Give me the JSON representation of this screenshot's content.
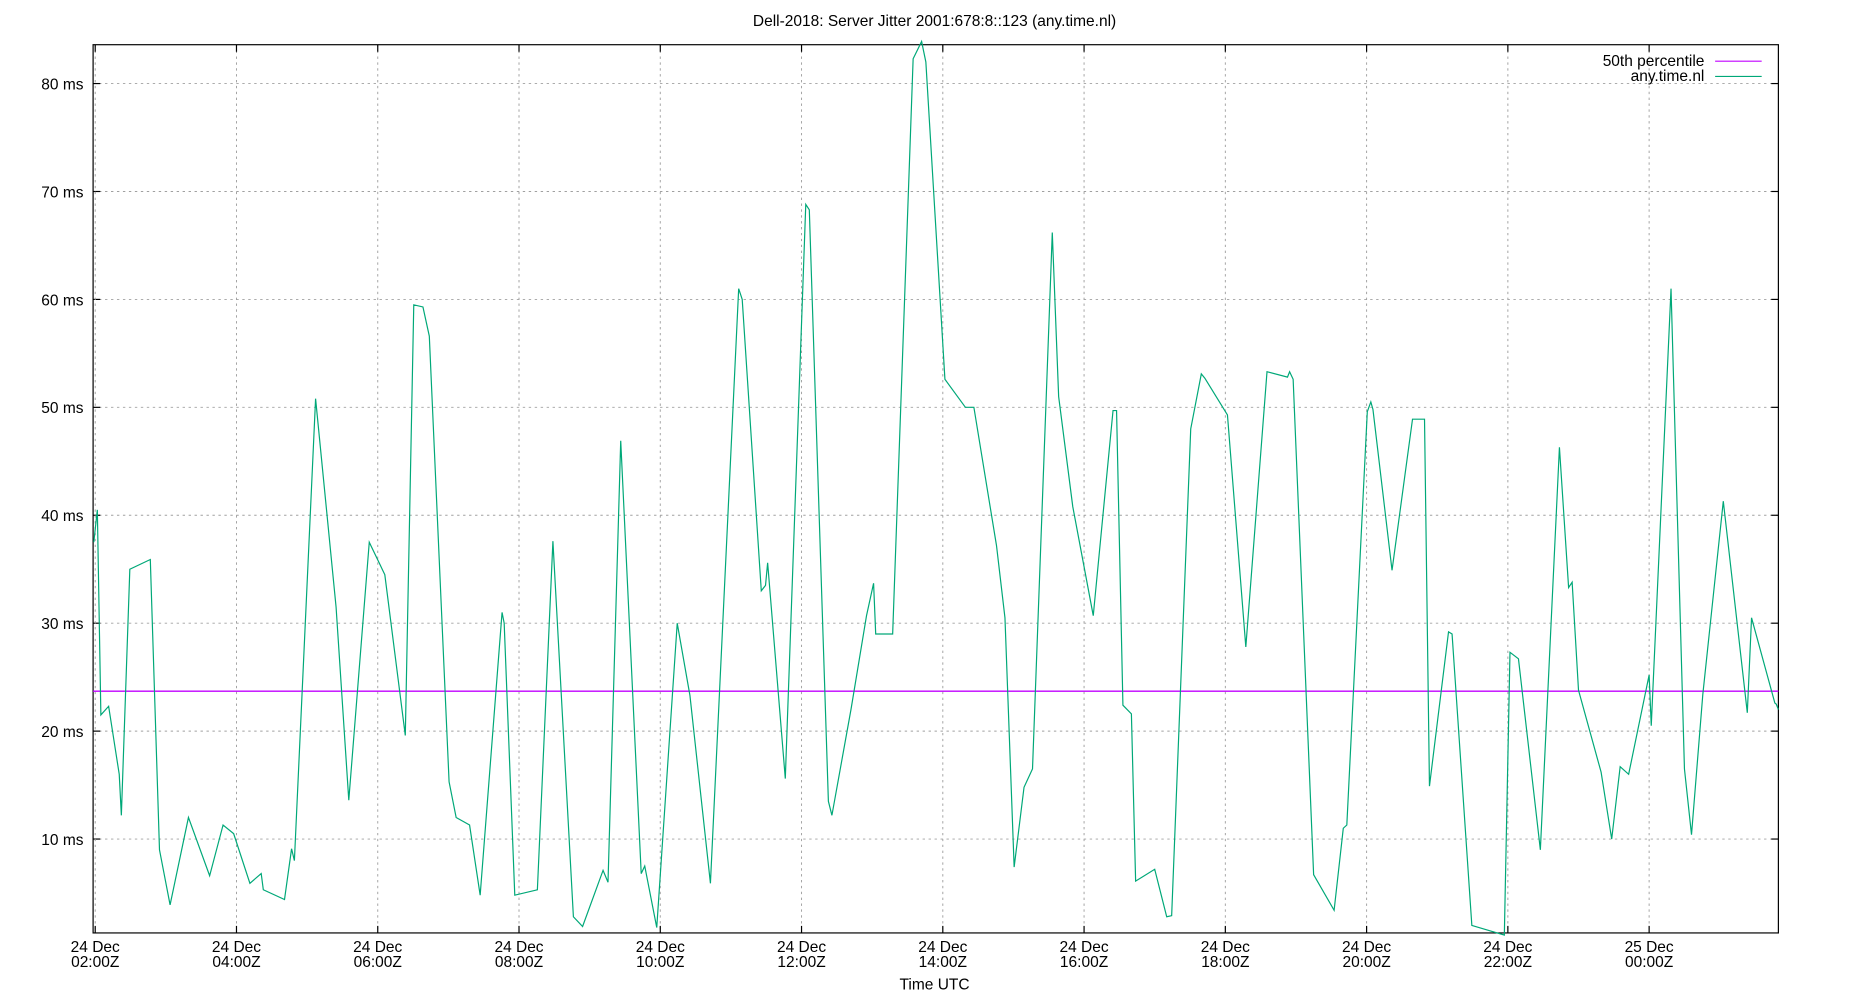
{
  "chart_data": {
    "type": "line",
    "title": "Dell-2018: Server Jitter 2001:678:8::123 (any.time.nl)",
    "xlabel": "Time UTC",
    "xlim": [
      1.97,
      25.83
    ],
    "ylim": [
      1.3,
      83.6
    ],
    "xticks": [
      {
        "value": 2,
        "label": [
          "24 Dec",
          "02:00Z"
        ]
      },
      {
        "value": 4,
        "label": [
          "24 Dec",
          "04:00Z"
        ]
      },
      {
        "value": 6,
        "label": [
          "24 Dec",
          "06:00Z"
        ]
      },
      {
        "value": 8,
        "label": [
          "24 Dec",
          "08:00Z"
        ]
      },
      {
        "value": 10,
        "label": [
          "24 Dec",
          "10:00Z"
        ]
      },
      {
        "value": 12,
        "label": [
          "24 Dec",
          "12:00Z"
        ]
      },
      {
        "value": 14,
        "label": [
          "24 Dec",
          "14:00Z"
        ]
      },
      {
        "value": 16,
        "label": [
          "24 Dec",
          "16:00Z"
        ]
      },
      {
        "value": 18,
        "label": [
          "24 Dec",
          "18:00Z"
        ]
      },
      {
        "value": 20,
        "label": [
          "24 Dec",
          "20:00Z"
        ]
      },
      {
        "value": 22,
        "label": [
          "24 Dec",
          "22:00Z"
        ]
      },
      {
        "value": 24,
        "label": [
          "25 Dec",
          "00:00Z"
        ]
      }
    ],
    "yticks": [
      {
        "value": 10,
        "label": "10 ms"
      },
      {
        "value": 20,
        "label": "20 ms"
      },
      {
        "value": 30,
        "label": "30 ms"
      },
      {
        "value": 40,
        "label": "40 ms"
      },
      {
        "value": 50,
        "label": "50 ms"
      },
      {
        "value": 60,
        "label": "60 ms"
      },
      {
        "value": 70,
        "label": "70 ms"
      },
      {
        "value": 80,
        "label": "80 ms"
      }
    ],
    "grid": true,
    "legend": "top-right",
    "reference_lines": [
      {
        "name": "50th percentile",
        "color": "#c000ff",
        "value": 23.7
      }
    ],
    "series": [
      {
        "name": "any.time.nl",
        "color": "#00a878",
        "x": [
          1.98,
          2.03,
          2.08,
          2.19,
          2.34,
          2.37,
          2.49,
          2.78,
          2.91,
          3.06,
          3.32,
          3.62,
          3.81,
          3.96,
          4.19,
          4.35,
          4.38,
          4.68,
          4.78,
          4.82,
          5.12,
          5.41,
          5.59,
          5.88,
          6.1,
          6.39,
          6.51,
          6.64,
          6.73,
          7.01,
          7.11,
          7.3,
          7.45,
          7.76,
          7.79,
          7.94,
          8.26,
          8.48,
          8.77,
          8.9,
          9.19,
          9.26,
          9.44,
          9.73,
          9.78,
          9.95,
          10.24,
          10.42,
          10.71,
          11.11,
          11.16,
          11.43,
          11.49,
          11.52,
          11.77,
          12.06,
          12.11,
          12.38,
          12.43,
          12.7,
          12.92,
          13.02,
          13.05,
          13.29,
          13.58,
          13.7,
          13.76,
          14.03,
          14.32,
          14.44,
          14.76,
          14.88,
          15.01,
          15.15,
          15.27,
          15.55,
          15.64,
          15.84,
          16.13,
          16.41,
          16.46,
          16.55,
          16.67,
          16.73,
          17.0,
          17.17,
          17.24,
          17.51,
          17.66,
          17.71,
          18.03,
          18.29,
          18.59,
          18.88,
          18.91,
          18.96,
          19.25,
          19.54,
          19.67,
          19.72,
          20.01,
          20.06,
          20.09,
          20.36,
          20.65,
          20.82,
          20.89,
          21.16,
          21.21,
          21.49,
          21.95,
          22.03,
          22.15,
          22.46,
          22.73,
          22.86,
          22.91,
          23.0,
          23.32,
          23.47,
          23.59,
          23.71,
          24.0,
          24.03,
          24.31,
          24.5,
          24.6,
          24.76,
          25.05,
          25.39,
          25.45,
          25.78,
          25.8,
          25.83
        ],
        "values": [
          37.5,
          40.5,
          21.5,
          22.3,
          16,
          12.2,
          35,
          35.9,
          9,
          3.9,
          12,
          6.6,
          11.3,
          10.5,
          5.9,
          6.8,
          5.3,
          4.4,
          9.1,
          8,
          50.8,
          31.5,
          13.6,
          37.5,
          34.5,
          19.6,
          59.5,
          59.3,
          56.6,
          15.3,
          12,
          11.3,
          4.8,
          31,
          30,
          4.8,
          5.3,
          37.6,
          2.8,
          1.9,
          7.1,
          6,
          46.9,
          6.8,
          7.5,
          1.8,
          30,
          23.3,
          5.9,
          61,
          60,
          33,
          33.5,
          35.6,
          15.6,
          68.8,
          68.3,
          13.5,
          12.2,
          22,
          30.7,
          33.7,
          29,
          29,
          82.3,
          83.9,
          82,
          52.6,
          50,
          50,
          37.2,
          30.5,
          7.4,
          14.8,
          16.5,
          66.2,
          51,
          40.8,
          30.7,
          49.7,
          49.7,
          22.4,
          21.6,
          6.1,
          7.2,
          2.8,
          2.9,
          48,
          53.1,
          52.7,
          49.3,
          27.8,
          53.3,
          52.8,
          53.3,
          52.6,
          6.7,
          3.4,
          11,
          11.3,
          49.6,
          50.5,
          49.8,
          34.9,
          48.9,
          48.9,
          14.9,
          29.2,
          29,
          2,
          1.1,
          27.3,
          26.7,
          9,
          46.3,
          33.3,
          33.8,
          23.8,
          16.2,
          10,
          16.7,
          16,
          25.2,
          20.5,
          61,
          16.5,
          10.4,
          23.4,
          41.3,
          21.7,
          30.5,
          22.6,
          22.5,
          22
        ]
      }
    ]
  }
}
